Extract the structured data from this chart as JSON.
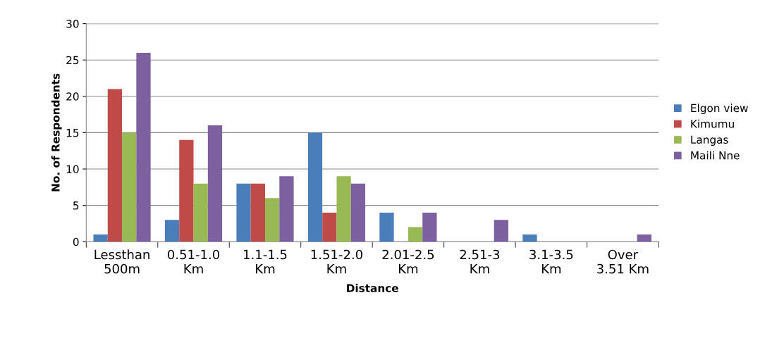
{
  "chart_data": {
    "type": "bar",
    "xlabel": "Distance",
    "ylabel": "No. of Respondents",
    "categories": [
      "Lessthan\n500m",
      "0.51-1.0\nKm",
      "1.1-1.5\nKm",
      "1.51-2.0\nKm",
      "2.01-2.5\nKm",
      "2.51-3\nKm",
      "3.1-3.5\nKm",
      "Over\n3.51 Km"
    ],
    "series": [
      {
        "name": "Elgon view",
        "color": "#4a7ebb",
        "values": [
          1,
          3,
          8,
          15,
          4,
          0,
          1,
          0
        ]
      },
      {
        "name": "Kimumu",
        "color": "#be4b48",
        "values": [
          21,
          14,
          8,
          4,
          0,
          0,
          0,
          0
        ]
      },
      {
        "name": "Langas",
        "color": "#98b954",
        "values": [
          15,
          8,
          6,
          9,
          2,
          0,
          0,
          0
        ]
      },
      {
        "name": "Maili Nne",
        "color": "#7d60a0",
        "values": [
          26,
          16,
          9,
          8,
          4,
          3,
          0,
          1
        ]
      }
    ],
    "ylim": [
      0,
      30
    ],
    "yticks": [
      0,
      5,
      10,
      15,
      20,
      25,
      30
    ],
    "grid": "y",
    "legend": "right"
  }
}
